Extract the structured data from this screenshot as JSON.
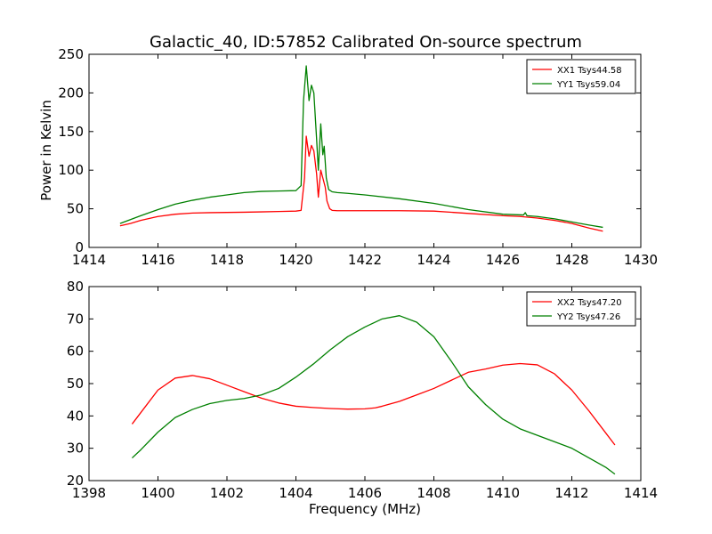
{
  "figure": {
    "title": "Galactic_40, ID:57852 Calibrated On-source spectrum",
    "xlabel": "Frequency (MHz)",
    "ylabel": "Power in Kelvin"
  },
  "chart_data": [
    {
      "type": "line",
      "title": "Galactic_40, ID:57852 Calibrated On-source spectrum",
      "xlabel": "",
      "ylabel": "Power in Kelvin",
      "xlim": [
        1414,
        1430
      ],
      "ylim": [
        0,
        250
      ],
      "xticks": [
        1414,
        1416,
        1418,
        1420,
        1422,
        1424,
        1426,
        1428,
        1430
      ],
      "yticks": [
        0,
        50,
        100,
        150,
        200,
        250
      ],
      "grid": false,
      "legend_position": "top-right",
      "series": [
        {
          "name": "XX1 Tsys44.58",
          "color": "#ff0000",
          "x": [
            1414.9,
            1415.2,
            1415.5,
            1416.0,
            1416.5,
            1417.0,
            1417.5,
            1418.0,
            1418.5,
            1419.0,
            1419.5,
            1420.0,
            1420.15,
            1420.25,
            1420.3,
            1420.38,
            1420.45,
            1420.52,
            1420.6,
            1420.65,
            1420.72,
            1420.78,
            1420.85,
            1420.9,
            1420.98,
            1421.05,
            1421.2,
            1421.5,
            1422.0,
            1423.0,
            1424.0,
            1425.0,
            1426.0,
            1426.5,
            1427.0,
            1427.5,
            1428.0,
            1428.5,
            1428.9
          ],
          "y": [
            28,
            31,
            35,
            40,
            43,
            44.5,
            45,
            45.3,
            45.6,
            46,
            46.5,
            47,
            48,
            90,
            144,
            118,
            132,
            125,
            95,
            65,
            100,
            90,
            78,
            60,
            50,
            48,
            47.5,
            47.5,
            47.5,
            47.5,
            47,
            44,
            41,
            40,
            38,
            35,
            31,
            25,
            21
          ]
        },
        {
          "name": "YY1 Tsys59.04",
          "color": "#008000",
          "x": [
            1414.9,
            1415.2,
            1415.5,
            1416.0,
            1416.5,
            1417.0,
            1417.5,
            1418.0,
            1418.5,
            1419.0,
            1419.5,
            1420.0,
            1420.15,
            1420.22,
            1420.3,
            1420.38,
            1420.45,
            1420.52,
            1420.6,
            1420.65,
            1420.72,
            1420.78,
            1420.82,
            1420.88,
            1420.95,
            1421.05,
            1421.2,
            1421.5,
            1422.0,
            1423.0,
            1424.0,
            1425.0,
            1426.0,
            1426.6,
            1426.65,
            1426.7,
            1427.0,
            1427.5,
            1428.0,
            1428.5,
            1428.9
          ],
          "y": [
            31,
            36,
            41,
            49,
            56,
            61,
            65,
            68,
            71,
            72.5,
            73,
            73.5,
            80,
            190,
            235,
            190,
            210,
            200,
            140,
            100,
            160,
            120,
            131,
            90,
            75,
            72,
            71,
            70,
            68,
            63,
            57,
            49,
            43,
            42,
            45,
            41,
            40,
            37,
            33,
            29,
            26
          ]
        }
      ]
    },
    {
      "type": "line",
      "title": "",
      "xlabel": "Frequency (MHz)",
      "ylabel": "",
      "xlim": [
        1398,
        1414
      ],
      "ylim": [
        20,
        80
      ],
      "xticks": [
        1398,
        1400,
        1402,
        1404,
        1406,
        1408,
        1410,
        1412,
        1414
      ],
      "yticks": [
        20,
        30,
        40,
        50,
        60,
        70,
        80
      ],
      "grid": false,
      "legend_position": "top-right",
      "series": [
        {
          "name": "XX2 Tsys47.20",
          "color": "#ff0000",
          "x": [
            1399.25,
            1399.5,
            1400.0,
            1400.5,
            1401.0,
            1401.5,
            1402.0,
            1402.5,
            1403.0,
            1403.5,
            1404.0,
            1404.5,
            1405.0,
            1405.5,
            1406.0,
            1406.3,
            1406.5,
            1407.0,
            1407.5,
            1408.0,
            1408.5,
            1409.0,
            1409.5,
            1410.0,
            1410.5,
            1411.0,
            1411.5,
            1412.0,
            1412.5,
            1413.0,
            1413.25
          ],
          "y": [
            37.5,
            41,
            48,
            51.7,
            52.5,
            51.5,
            49.5,
            47.5,
            45.5,
            44,
            43,
            42.6,
            42.3,
            42.1,
            42.2,
            42.5,
            43,
            44.5,
            46.5,
            48.5,
            51,
            53.5,
            54.5,
            55.7,
            56.2,
            55.8,
            53,
            48,
            41.5,
            34.5,
            31
          ]
        },
        {
          "name": "YY2 Tsys47.26",
          "color": "#008000",
          "x": [
            1399.25,
            1399.5,
            1400.0,
            1400.5,
            1401.0,
            1401.5,
            1402.0,
            1402.5,
            1403.0,
            1403.5,
            1404.0,
            1404.5,
            1405.0,
            1405.5,
            1406.0,
            1406.5,
            1407.0,
            1407.5,
            1408.0,
            1408.5,
            1409.0,
            1409.5,
            1410.0,
            1410.5,
            1411.0,
            1411.5,
            1412.0,
            1412.5,
            1413.0,
            1413.25
          ],
          "y": [
            27,
            29.5,
            35,
            39.5,
            42,
            43.8,
            44.8,
            45.4,
            46.5,
            48.5,
            52,
            56,
            60.5,
            64.5,
            67.5,
            70,
            71,
            69,
            64.5,
            57,
            49,
            43.5,
            39,
            36,
            34,
            32,
            30,
            27,
            24,
            22
          ]
        }
      ]
    }
  ]
}
